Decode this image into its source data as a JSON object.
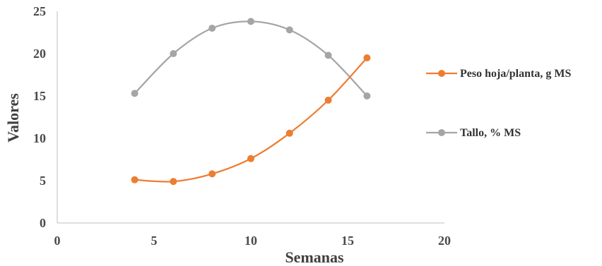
{
  "chart_data": {
    "type": "line",
    "title": "",
    "xlabel": "Semanas",
    "ylabel": "Valores",
    "xlim": [
      0,
      20
    ],
    "ylim": [
      0,
      25
    ],
    "xticks": [
      "0",
      "5",
      "10",
      "15",
      "20"
    ],
    "yticks": [
      "0",
      "5",
      "10",
      "15",
      "20",
      "25"
    ],
    "grid": false,
    "smooth": true,
    "legend_position": "right",
    "series": [
      {
        "name": "Peso hoja/planta, g MS",
        "color": "#ED7D31",
        "x": [
          4,
          6,
          8,
          10,
          12,
          14,
          16
        ],
        "y": [
          5.1,
          4.9,
          5.8,
          7.6,
          10.6,
          14.5,
          19.5
        ]
      },
      {
        "name": "Tallo, % MS",
        "color": "#A5A5A5",
        "x": [
          4,
          6,
          8,
          10,
          12,
          14,
          16
        ],
        "y": [
          15.3,
          20.0,
          23.0,
          23.8,
          22.8,
          19.8,
          15.0
        ]
      }
    ]
  }
}
